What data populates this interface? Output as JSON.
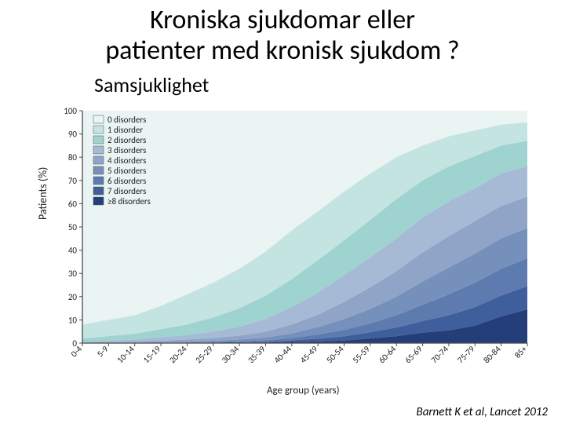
{
  "title_line1": "Kroniska sjukdomar eller",
  "title_line2": "patienter med kronisk sjukdom ?",
  "subtitle": "Samsjuklighet",
  "citation": "Barnett K et al, Lancet 2012",
  "ylabel": "Patients (%)",
  "xlabel": "Age group (years)",
  "chart": {
    "type": "area-stacked",
    "background_color": "#ffffff",
    "plot_bg": "#ffffff",
    "axis_color": "#4a4a4a",
    "grid_color": "#e0e0e0",
    "tick_fontsize": 11,
    "label_fontsize": 13,
    "legend_fontsize": 11,
    "ylim": [
      0,
      100
    ],
    "yticks": [
      0,
      10,
      20,
      30,
      40,
      50,
      60,
      70,
      80,
      90,
      100
    ],
    "categories": [
      "0-4",
      "5-9",
      "10-14",
      "15-19",
      "20-24",
      "25-29",
      "30-34",
      "35-39",
      "40-44",
      "45-49",
      "50-54",
      "55-59",
      "60-64",
      "65-69",
      "70-74",
      "75-79",
      "80-84",
      "85+"
    ],
    "legend": [
      "0 disorders",
      "1 disorder",
      "2 disorders",
      "3 disorders",
      "4 disorders",
      "5 disorders",
      "6 disorders",
      "7 disorders",
      "≥8 disorders"
    ],
    "colors": [
      "#e9f4f3",
      "#c4e4e2",
      "#9fd3d0",
      "#a6b9d5",
      "#8fa4c7",
      "#7690bc",
      "#5e7bb0",
      "#3f5e9c",
      "#243e7a"
    ],
    "series_pct": [
      [
        92,
        90,
        88,
        84,
        79,
        74,
        68,
        60,
        51,
        43,
        34,
        27,
        20,
        15,
        11,
        8,
        6,
        5
      ],
      [
        6,
        7,
        8,
        10,
        13,
        15,
        17,
        19,
        21,
        21,
        21,
        20,
        18,
        15,
        13,
        11,
        9,
        8
      ],
      [
        1.5,
        2,
        2.5,
        3.5,
        4.5,
        6,
        8,
        10,
        12,
        14,
        15,
        16,
        17,
        16,
        15,
        14,
        12,
        11
      ],
      [
        0.3,
        0.6,
        1,
        1.5,
        2,
        2.8,
        3.8,
        5.5,
        7.5,
        9.5,
        11.5,
        13,
        14,
        15,
        15,
        14,
        14,
        13
      ],
      [
        0.1,
        0.2,
        0.3,
        0.6,
        0.9,
        1.2,
        1.7,
        2.5,
        3.8,
        5.3,
        7.3,
        9.3,
        11,
        12.5,
        13.5,
        14,
        14,
        13.5
      ],
      [
        0.05,
        0.1,
        0.1,
        0.2,
        0.3,
        0.5,
        0.7,
        1.2,
        2,
        3.2,
        4.7,
        6.2,
        8,
        10,
        11.5,
        12.5,
        13,
        13
      ],
      [
        0.03,
        0.05,
        0.05,
        0.1,
        0.15,
        0.25,
        0.4,
        0.6,
        1,
        1.8,
        2.8,
        3.8,
        5.3,
        7,
        9,
        10.5,
        11.5,
        12
      ],
      [
        0.01,
        0.03,
        0.03,
        0.07,
        0.1,
        0.15,
        0.25,
        0.35,
        0.7,
        1.2,
        1.8,
        2.7,
        3.7,
        5,
        6.5,
        8,
        9,
        10
      ],
      [
        0.01,
        0.02,
        0.02,
        0.03,
        0.05,
        0.1,
        0.15,
        0.25,
        0.5,
        0.7,
        1.1,
        2,
        3,
        4.5,
        5.5,
        7.5,
        11.5,
        14.5
      ]
    ]
  }
}
